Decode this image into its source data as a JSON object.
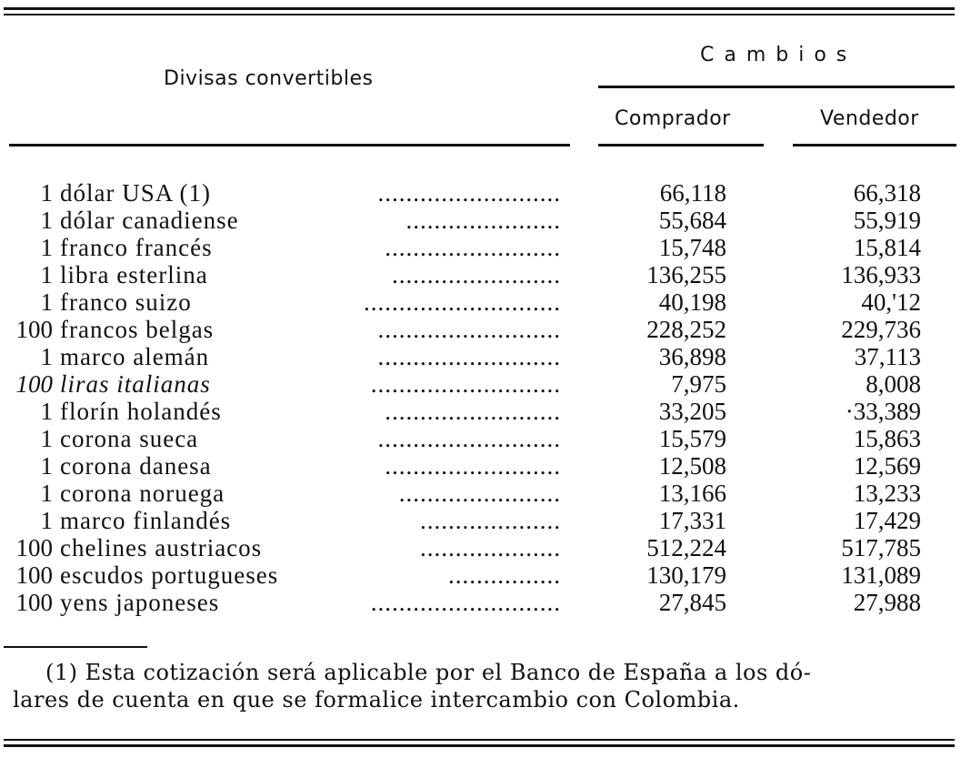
{
  "header": {
    "currencies_label": "Divisas convertibles",
    "group_label": "C a m b i o s",
    "buyer_label": "Comprador",
    "seller_label": "Vendedor"
  },
  "rows": [
    {
      "qty": "1",
      "name": "dólar USA (1)",
      "dots": "..........................",
      "buy": "66,118",
      "sell": "66,318",
      "italic": false
    },
    {
      "qty": "1",
      "name": "dólar canadiense",
      "dots": "......................",
      "buy": "55,684",
      "sell": "55,919",
      "italic": false
    },
    {
      "qty": "1",
      "name": "franco francés",
      "dots": ".........................",
      "buy": "15,748",
      "sell": "15,814",
      "italic": false
    },
    {
      "qty": "1",
      "name": "libra esterlina",
      "dots": "........................",
      "buy": "136,255",
      "sell": "136,933",
      "italic": false
    },
    {
      "qty": "1",
      "name": "franco suizo",
      "dots": "............................",
      "buy": "40,198",
      "sell": "40,'12",
      "italic": false
    },
    {
      "qty": "100",
      "name": "francos belgas",
      "dots": "..........................",
      "buy": "228,252",
      "sell": "229,736",
      "italic": false
    },
    {
      "qty": "1",
      "name": "marco alemán",
      "dots": "..........................",
      "buy": "36,898",
      "sell": "37,113",
      "italic": false
    },
    {
      "qty": "100",
      "name": "liras italianas",
      "dots": "...........................",
      "buy": "7,975",
      "sell": "8,008",
      "italic": true
    },
    {
      "qty": "1",
      "name": "florín holandés",
      "dots": ".........................",
      "buy": "33,205",
      "sell": "·33,389",
      "italic": false
    },
    {
      "qty": "1",
      "name": "corona sueca",
      "dots": "..........................",
      "buy": "15,579",
      "sell": "15,863",
      "italic": false
    },
    {
      "qty": "1",
      "name": "corona danesa",
      "dots": ".........................",
      "buy": "12,508",
      "sell": "12,569",
      "italic": false
    },
    {
      "qty": "1",
      "name": "corona noruega",
      "dots": ".......................",
      "buy": "13,166",
      "sell": "13,233",
      "italic": false
    },
    {
      "qty": "1",
      "name": "marco finlandés",
      "dots": "....................",
      "buy": "17,331",
      "sell": "17,429",
      "italic": false
    },
    {
      "qty": "100",
      "name": "chelines austriacos",
      "dots": "....................",
      "buy": "512,224",
      "sell": "517,785",
      "italic": false
    },
    {
      "qty": "100",
      "name": "escudos portugueses",
      "dots": "................",
      "buy": "130,179",
      "sell": "131,089",
      "italic": false
    },
    {
      "qty": "100",
      "name": "yens japoneses",
      "dots": "...........................",
      "buy": "27,845",
      "sell": "27,988",
      "italic": false
    }
  ],
  "footnote": {
    "line1": "(1) Esta cotización será aplicable por el Banco de España a los dó-",
    "line2": "lares de cuenta en que se formalice intercambio con Colombia."
  }
}
